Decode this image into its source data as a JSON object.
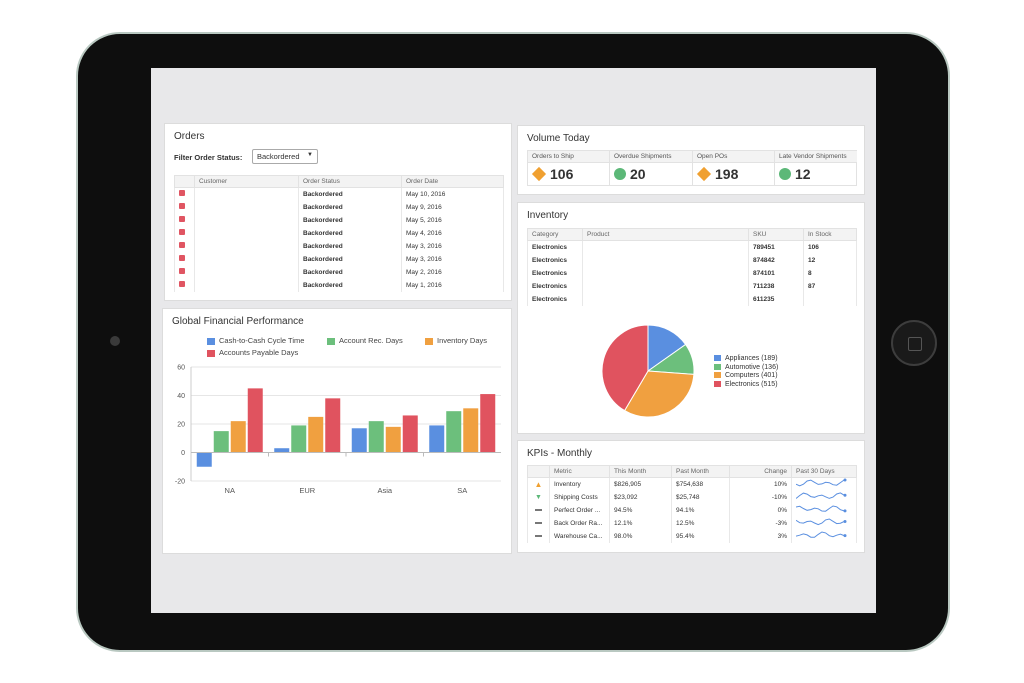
{
  "orders": {
    "title": "Orders",
    "filter_label": "Filter Order Status:",
    "filter_value": "Backordered",
    "columns": [
      "Customer",
      "Order Status",
      "Order Date"
    ],
    "rows": [
      {
        "status": "Backordered",
        "date": "May 10, 2016"
      },
      {
        "status": "Backordered",
        "date": "May 9, 2016"
      },
      {
        "status": "Backordered",
        "date": "May 5, 2016"
      },
      {
        "status": "Backordered",
        "date": "May 4, 2016"
      },
      {
        "status": "Backordered",
        "date": "May 3, 2016"
      },
      {
        "status": "Backordered",
        "date": "May 3, 2016"
      },
      {
        "status": "Backordered",
        "date": "May 2, 2016"
      },
      {
        "status": "Backordered",
        "date": "May 1, 2016"
      }
    ]
  },
  "volume": {
    "title": "Volume Today",
    "cells": [
      {
        "label": "Orders to Ship",
        "value": "106",
        "icon": "diamond"
      },
      {
        "label": "Overdue Shipments",
        "value": "20",
        "icon": "circle"
      },
      {
        "label": "Open POs",
        "value": "198",
        "icon": "diamond"
      },
      {
        "label": "Late Vendor Shipments",
        "value": "12",
        "icon": "circle"
      }
    ]
  },
  "inventory": {
    "title": "Inventory",
    "columns": [
      "Category",
      "Product",
      "SKU",
      "In Stock"
    ],
    "rows": [
      {
        "category": "Electronics",
        "sku": "789451",
        "stock": "106"
      },
      {
        "category": "Electronics",
        "sku": "874842",
        "stock": "12"
      },
      {
        "category": "Electronics",
        "sku": "874101",
        "stock": "8"
      },
      {
        "category": "Electronics",
        "sku": "711238",
        "stock": "87"
      },
      {
        "category": "Electronics",
        "sku": "611235",
        "stock": ""
      }
    ],
    "pie": {
      "type": "pie",
      "slices": [
        {
          "label": "Appliances (189)",
          "value": 189,
          "color": "#5a8fe0"
        },
        {
          "label": "Automotive (136)",
          "value": 136,
          "color": "#6cbf7c"
        },
        {
          "label": "Computers (401)",
          "value": 401,
          "color": "#f0a040"
        },
        {
          "label": "Electronics (515)",
          "value": 515,
          "color": "#e0535f"
        }
      ]
    }
  },
  "financial": {
    "title": "Global Financial Performance"
  },
  "chart_data": {
    "type": "bar",
    "categories": [
      "NA",
      "EUR",
      "Asia",
      "SA"
    ],
    "series": [
      {
        "name": "Cash-to-Cash Cycle Time",
        "color": "#5a8fe0",
        "values": [
          -10,
          3,
          17,
          19
        ]
      },
      {
        "name": "Account Rec. Days",
        "color": "#6cbf7c",
        "values": [
          15,
          19,
          22,
          29
        ]
      },
      {
        "name": "Inventory Days",
        "color": "#f0a040",
        "values": [
          22,
          25,
          18,
          31
        ]
      },
      {
        "name": "Accounts Payable Days",
        "color": "#e0535f",
        "values": [
          45,
          38,
          26,
          41
        ]
      }
    ],
    "ylim": [
      -20,
      60
    ],
    "yticks": [
      60,
      40,
      20,
      0,
      -20
    ]
  },
  "kpis": {
    "title": "KPIs - Monthly",
    "columns": [
      "Metric",
      "This Month",
      "Past Month",
      "Change",
      "Past 30 Days"
    ],
    "rows": [
      {
        "icon": "warning",
        "metric": "Inventory",
        "this": "$826,905",
        "past": "$754,638",
        "change": "10%"
      },
      {
        "icon": "down",
        "metric": "Shipping Costs",
        "this": "$23,092",
        "past": "$25,748",
        "change": "-10%"
      },
      {
        "icon": "dash",
        "metric": "Perfect Order ...",
        "this": "94.5%",
        "past": "94.1%",
        "change": "0%"
      },
      {
        "icon": "dash",
        "metric": "Back Order Ra...",
        "this": "12.1%",
        "past": "12.5%",
        "change": "-3%"
      },
      {
        "icon": "dash",
        "metric": "Warehouse Ca...",
        "this": "98.0%",
        "past": "95.4%",
        "change": "3%"
      }
    ]
  }
}
